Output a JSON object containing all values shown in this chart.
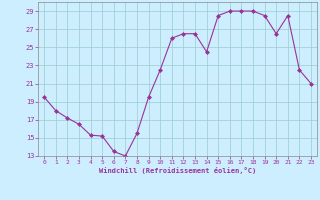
{
  "x": [
    0,
    1,
    2,
    3,
    4,
    5,
    6,
    7,
    8,
    9,
    10,
    11,
    12,
    13,
    14,
    15,
    16,
    17,
    18,
    19,
    20,
    21,
    22,
    23
  ],
  "y": [
    19.5,
    18.0,
    17.2,
    16.5,
    15.3,
    15.2,
    13.5,
    13.0,
    15.5,
    19.5,
    22.5,
    26.0,
    26.5,
    26.5,
    24.5,
    28.5,
    29.0,
    29.0,
    29.0,
    28.5,
    26.5,
    28.5,
    22.5,
    21.0
  ],
  "line_color": "#993399",
  "marker_color": "#993399",
  "bg_color": "#cceeff",
  "grid_color": "#99cccc",
  "xlabel": "Windchill (Refroidissement éolien,°C)",
  "xlim": [
    -0.5,
    23.5
  ],
  "ylim": [
    13,
    30
  ],
  "yticks": [
    13,
    15,
    17,
    19,
    21,
    23,
    25,
    27,
    29
  ],
  "xticks": [
    0,
    1,
    2,
    3,
    4,
    5,
    6,
    7,
    8,
    9,
    10,
    11,
    12,
    13,
    14,
    15,
    16,
    17,
    18,
    19,
    20,
    21,
    22,
    23
  ]
}
